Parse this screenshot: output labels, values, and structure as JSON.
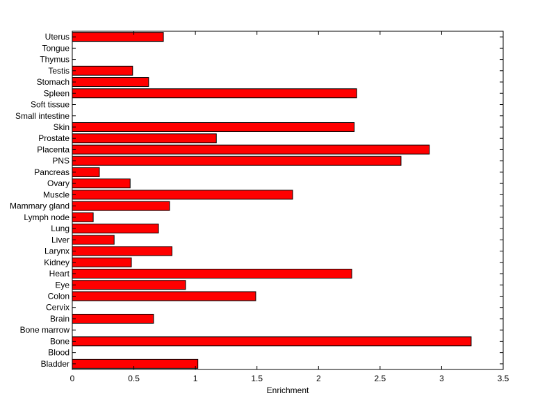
{
  "chart_data": {
    "type": "bar",
    "orientation": "horizontal",
    "title": "",
    "xlabel": "Enrichment",
    "ylabel": "",
    "xlim": [
      0,
      3.5
    ],
    "xticks": [
      0,
      0.5,
      1,
      1.5,
      2,
      2.5,
      3,
      3.5
    ],
    "xtick_labels": [
      "0",
      "0.5",
      "1",
      "1.5",
      "2",
      "2.5",
      "3",
      "3.5"
    ],
    "grid": false,
    "legend": "none",
    "bar_color": "#ff0000",
    "edge_color": "#000000",
    "categories": [
      "Bladder",
      "Blood",
      "Bone",
      "Bone marrow",
      "Brain",
      "Cervix",
      "Colon",
      "Eye",
      "Heart",
      "Kidney",
      "Larynx",
      "Liver",
      "Lung",
      "Lymph node",
      "Mammary gland",
      "Muscle",
      "Ovary",
      "Pancreas",
      "PNS",
      "Placenta",
      "Prostate",
      "Skin",
      "Small intestine",
      "Soft tissue",
      "Spleen",
      "Stomach",
      "Testis",
      "Thymus",
      "Tongue",
      "Uterus"
    ],
    "values": [
      1.02,
      0,
      3.24,
      0,
      0.66,
      0,
      1.49,
      0.92,
      2.27,
      0.48,
      0.81,
      0.34,
      0.7,
      0.17,
      0.79,
      1.79,
      0.47,
      0.22,
      2.67,
      2.9,
      1.17,
      2.29,
      0,
      0,
      2.31,
      0.62,
      0.49,
      0,
      0,
      0.74
    ]
  }
}
